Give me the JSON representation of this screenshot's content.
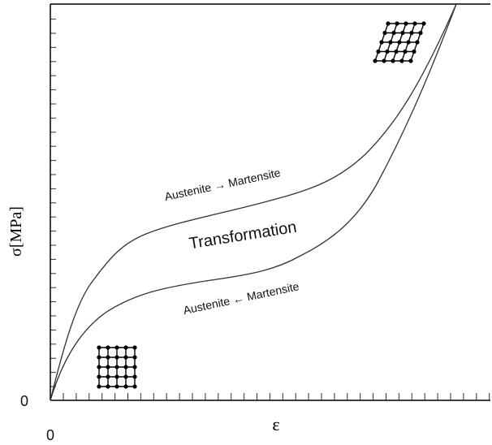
{
  "axes": {
    "y_title": "σ[MPa]",
    "x_title": "ε",
    "y_origin": "0",
    "x_origin": "0"
  },
  "labels": {
    "forward": "Austenite → Martensite",
    "region": "Transformation",
    "reverse": "Austenite ← Martensite"
  }
}
